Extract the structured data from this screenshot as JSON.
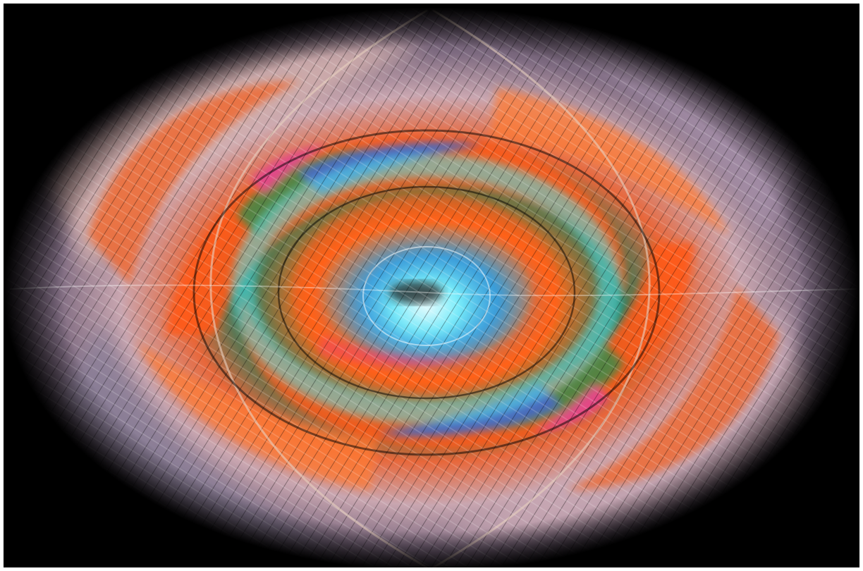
{
  "image": {
    "subject": "abstract swirl",
    "palette": {
      "background": "#000000",
      "frame": "#ffffff",
      "orange": "#ff5a14",
      "cyan": "#4fe6f0",
      "blue": "#2f6bd8",
      "green": "#3a8a48",
      "pink": "#e9a7a0",
      "magenta": "#e0459a",
      "cream": "#f4dcc8",
      "slate": "#6a7aa0"
    }
  }
}
